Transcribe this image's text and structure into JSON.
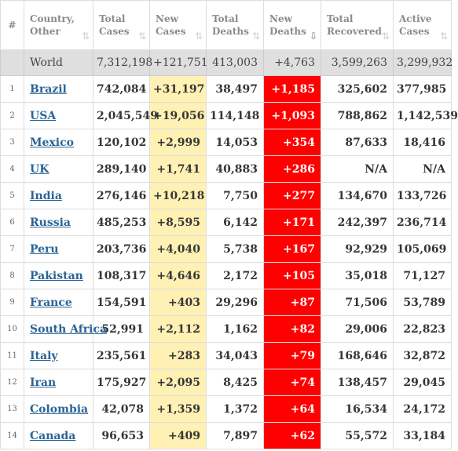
{
  "headers": {
    "idx": "#",
    "country_line1": "Country,",
    "country_line2": "Other",
    "total_cases_line1": "Total",
    "total_cases_line2": "Cases",
    "new_cases_line1": "New",
    "new_cases_line2": "Cases",
    "total_deaths_line1": "Total",
    "total_deaths_line2": "Deaths",
    "new_deaths_line1": "New",
    "new_deaths_line2": "Deaths",
    "total_recovered_line1": "Total",
    "total_recovered_line2": "Recovered",
    "active_cases_line1": "Active",
    "active_cases_line2": "Cases",
    "sort_icon": "⇅",
    "sort_active_icon": "⇩"
  },
  "world": {
    "country": "World",
    "total_cases": "7,312,198",
    "new_cases": "+121,751",
    "total_deaths": "413,003",
    "new_deaths": "+4,763",
    "total_recovered": "3,599,263",
    "active_cases": "3,299,932"
  },
  "rows": [
    {
      "idx": "1",
      "country": "Brazil",
      "total_cases": "742,084",
      "new_cases": "+31,197",
      "total_deaths": "38,497",
      "new_deaths": "+1,185",
      "total_recovered": "325,602",
      "active_cases": "377,985"
    },
    {
      "idx": "2",
      "country": "USA",
      "total_cases": "2,045,549",
      "new_cases": "+19,056",
      "total_deaths": "114,148",
      "new_deaths": "+1,093",
      "total_recovered": "788,862",
      "active_cases": "1,142,539"
    },
    {
      "idx": "3",
      "country": "Mexico",
      "total_cases": "120,102",
      "new_cases": "+2,999",
      "total_deaths": "14,053",
      "new_deaths": "+354",
      "total_recovered": "87,633",
      "active_cases": "18,416"
    },
    {
      "idx": "4",
      "country": "UK",
      "total_cases": "289,140",
      "new_cases": "+1,741",
      "total_deaths": "40,883",
      "new_deaths": "+286",
      "total_recovered": "N/A",
      "active_cases": "N/A"
    },
    {
      "idx": "5",
      "country": "India",
      "total_cases": "276,146",
      "new_cases": "+10,218",
      "total_deaths": "7,750",
      "new_deaths": "+277",
      "total_recovered": "134,670",
      "active_cases": "133,726"
    },
    {
      "idx": "6",
      "country": "Russia",
      "total_cases": "485,253",
      "new_cases": "+8,595",
      "total_deaths": "6,142",
      "new_deaths": "+171",
      "total_recovered": "242,397",
      "active_cases": "236,714"
    },
    {
      "idx": "7",
      "country": "Peru",
      "total_cases": "203,736",
      "new_cases": "+4,040",
      "total_deaths": "5,738",
      "new_deaths": "+167",
      "total_recovered": "92,929",
      "active_cases": "105,069"
    },
    {
      "idx": "8",
      "country": "Pakistan",
      "total_cases": "108,317",
      "new_cases": "+4,646",
      "total_deaths": "2,172",
      "new_deaths": "+105",
      "total_recovered": "35,018",
      "active_cases": "71,127"
    },
    {
      "idx": "9",
      "country": "France",
      "total_cases": "154,591",
      "new_cases": "+403",
      "total_deaths": "29,296",
      "new_deaths": "+87",
      "total_recovered": "71,506",
      "active_cases": "53,789"
    },
    {
      "idx": "10",
      "country": "South Africa",
      "total_cases": "52,991",
      "new_cases": "+2,112",
      "total_deaths": "1,162",
      "new_deaths": "+82",
      "total_recovered": "29,006",
      "active_cases": "22,823"
    },
    {
      "idx": "11",
      "country": "Italy",
      "total_cases": "235,561",
      "new_cases": "+283",
      "total_deaths": "34,043",
      "new_deaths": "+79",
      "total_recovered": "168,646",
      "active_cases": "32,872"
    },
    {
      "idx": "12",
      "country": "Iran",
      "total_cases": "175,927",
      "new_cases": "+2,095",
      "total_deaths": "8,425",
      "new_deaths": "+74",
      "total_recovered": "138,457",
      "active_cases": "29,045"
    },
    {
      "idx": "13",
      "country": "Colombia",
      "total_cases": "42,078",
      "new_cases": "+1,359",
      "total_deaths": "1,372",
      "new_deaths": "+64",
      "total_recovered": "16,534",
      "active_cases": "24,172"
    },
    {
      "idx": "14",
      "country": "Canada",
      "total_cases": "96,653",
      "new_cases": "+409",
      "total_deaths": "7,897",
      "new_deaths": "+62",
      "total_recovered": "55,572",
      "active_cases": "33,184"
    }
  ],
  "colors": {
    "new_cases_highlight": "#fff1b3",
    "new_deaths_highlight": "#ff0000",
    "world_row_bg": "#dfdfdf",
    "link": "#2a6496"
  }
}
